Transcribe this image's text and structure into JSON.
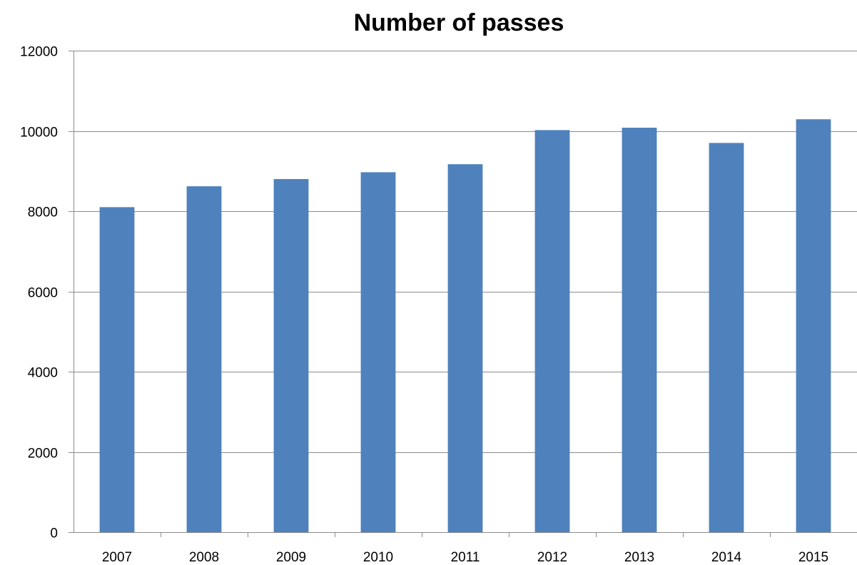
{
  "chart_data": {
    "type": "bar",
    "title": "Number of passes",
    "xlabel": "",
    "ylabel": "",
    "categories": [
      "2007",
      "2008",
      "2009",
      "2010",
      "2011",
      "2012",
      "2013",
      "2014",
      "2015"
    ],
    "values": [
      8100,
      8620,
      8800,
      8970,
      9170,
      10020,
      10080,
      9700,
      10290
    ],
    "ylim": [
      0,
      12000
    ],
    "yticks": [
      0,
      2000,
      4000,
      6000,
      8000,
      10000,
      12000
    ],
    "grid": true,
    "legend": "none",
    "bar_color": "#4f81bd"
  }
}
